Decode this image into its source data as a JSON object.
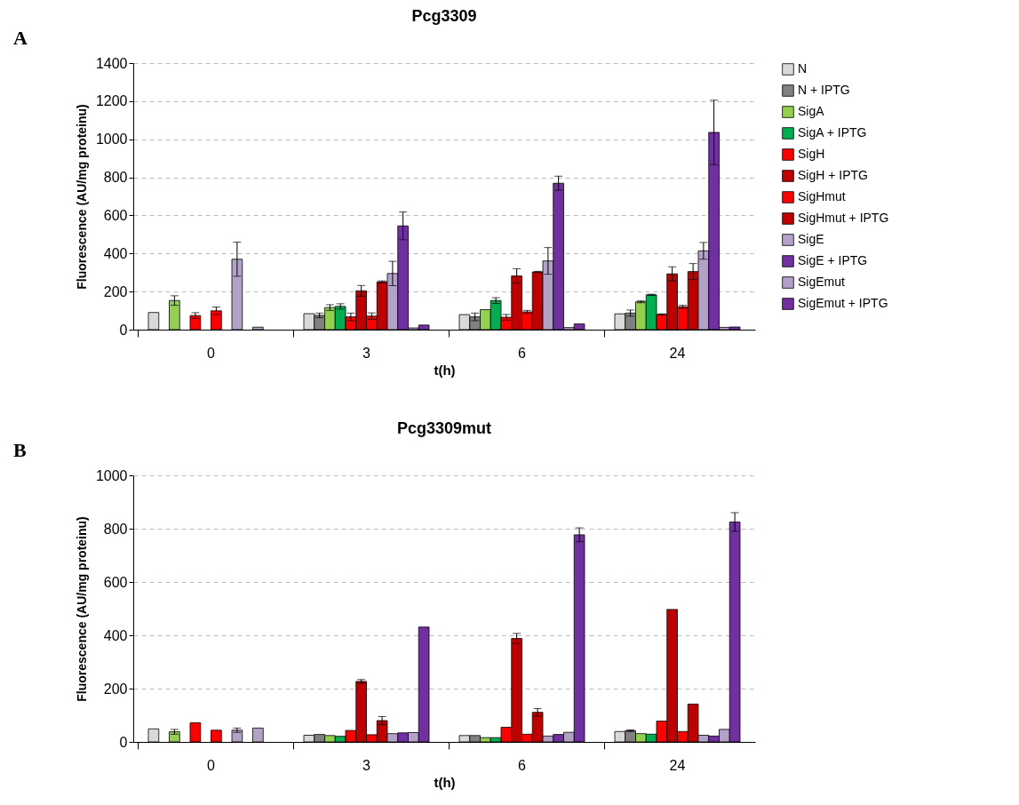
{
  "chart_data": [
    {
      "type": "bar",
      "title": "Pcg3309",
      "xlabel": "t(h)",
      "ylabel": "Fluorescence (AU/mg proteinu)",
      "annotations": [
        "A"
      ],
      "categories": [
        "0",
        "3",
        "6",
        "24"
      ],
      "ylim": [
        0,
        1400
      ],
      "yticks": [
        0,
        200,
        400,
        600,
        800,
        1000,
        1200,
        1400
      ],
      "grid": "y",
      "legend": "right",
      "series": [
        {
          "name": "N",
          "color": "#d9d9d9",
          "values": [
            90,
            84,
            79,
            83
          ],
          "errors": [
            null,
            null,
            null,
            null
          ]
        },
        {
          "name": "N + IPTG",
          "color": "#808080",
          "values": [
            null,
            75,
            67,
            87
          ],
          "errors": [
            null,
            12,
            20,
            16
          ]
        },
        {
          "name": "SigA",
          "color": "#92d050",
          "values": [
            153,
            116,
            105,
            146
          ],
          "errors": [
            25,
            15,
            null,
            5
          ]
        },
        {
          "name": "SigA + IPTG",
          "color": "#00b050",
          "values": [
            null,
            122,
            153,
            183
          ],
          "errors": [
            null,
            14,
            15,
            3
          ]
        },
        {
          "name": "SigH",
          "color": "#ff0000",
          "values": [
            74,
            67,
            65,
            80
          ],
          "errors": [
            15,
            20,
            15,
            3
          ]
        },
        {
          "name": "SigH + IPTG",
          "color": "#c00000",
          "values": [
            null,
            204,
            282,
            293
          ],
          "errors": [
            null,
            28,
            38,
            37
          ]
        },
        {
          "name": "SigHmut",
          "color": "#ff0000",
          "values": [
            99,
            71,
            93,
            120
          ],
          "errors": [
            20,
            17,
            8,
            8
          ]
        },
        {
          "name": "SigHmut + IPTG",
          "color": "#c00000",
          "values": [
            null,
            251,
            303,
            305
          ],
          "errors": [
            null,
            5,
            3,
            42
          ]
        },
        {
          "name": "SigE",
          "color": "#b3a2c7",
          "values": [
            370,
            295,
            361,
            414
          ],
          "errors": [
            90,
            64,
            70,
            44
          ]
        },
        {
          "name": "SigE + IPTG",
          "color": "#7030a0",
          "values": [
            null,
            545,
            769,
            1036
          ],
          "errors": [
            null,
            73,
            37,
            169
          ]
        },
        {
          "name": "SigEmut",
          "color": "#b3a2c7",
          "values": [
            13,
            9,
            11,
            12
          ],
          "errors": [
            null,
            null,
            null,
            null
          ]
        },
        {
          "name": "SigEmut + IPTG",
          "color": "#7030a0",
          "values": [
            null,
            24,
            30,
            14
          ],
          "errors": [
            null,
            null,
            null,
            null
          ]
        }
      ]
    },
    {
      "type": "bar",
      "title": "Pcg3309mut",
      "xlabel": "t(h)",
      "ylabel": "Fluorescence (AU/mg proteinu)",
      "annotations": [
        "B"
      ],
      "categories": [
        "0",
        "3",
        "6",
        "24"
      ],
      "ylim": [
        0,
        1000
      ],
      "yticks": [
        0,
        200,
        400,
        600,
        800,
        1000
      ],
      "grid": "y",
      "legend": false,
      "series": [
        {
          "color": "#d9d9d9",
          "values": [
            49,
            25,
            24,
            39
          ],
          "errors": [
            null,
            null,
            null,
            null
          ]
        },
        {
          "color": "#808080",
          "values": [
            null,
            28,
            24,
            42
          ],
          "errors": [
            null,
            null,
            null,
            3
          ]
        },
        {
          "color": "#92d050",
          "values": [
            38,
            24,
            16,
            31
          ],
          "errors": [
            9,
            null,
            null,
            null
          ]
        },
        {
          "color": "#00b050",
          "values": [
            null,
            21,
            16,
            29
          ],
          "errors": [
            null,
            null,
            null,
            null
          ]
        },
        {
          "color": "#ff0000",
          "values": [
            72,
            43,
            55,
            78
          ],
          "errors": [
            null,
            null,
            null,
            null
          ]
        },
        {
          "color": "#c00000",
          "values": [
            null,
            227,
            388,
            497
          ],
          "errors": [
            null,
            7,
            19,
            null
          ]
        },
        {
          "color": "#ff0000",
          "values": [
            44,
            27,
            29,
            39
          ],
          "errors": [
            null,
            null,
            null,
            null
          ]
        },
        {
          "color": "#c00000",
          "values": [
            null,
            80,
            111,
            142
          ],
          "errors": [
            null,
            15,
            14,
            null
          ]
        },
        {
          "color": "#b3a2c7",
          "values": [
            44,
            31,
            22,
            25
          ],
          "errors": [
            8,
            null,
            null,
            null
          ]
        },
        {
          "color": "#7030a0",
          "values": [
            null,
            34,
            28,
            22
          ],
          "errors": [
            null,
            null,
            null,
            null
          ]
        },
        {
          "color": "#b3a2c7",
          "values": [
            52,
            35,
            36,
            47
          ],
          "errors": [
            null,
            null,
            null,
            null
          ]
        },
        {
          "color": "#7030a0",
          "values": [
            null,
            431,
            777,
            825
          ],
          "errors": [
            null,
            null,
            26,
            35
          ]
        }
      ]
    }
  ]
}
